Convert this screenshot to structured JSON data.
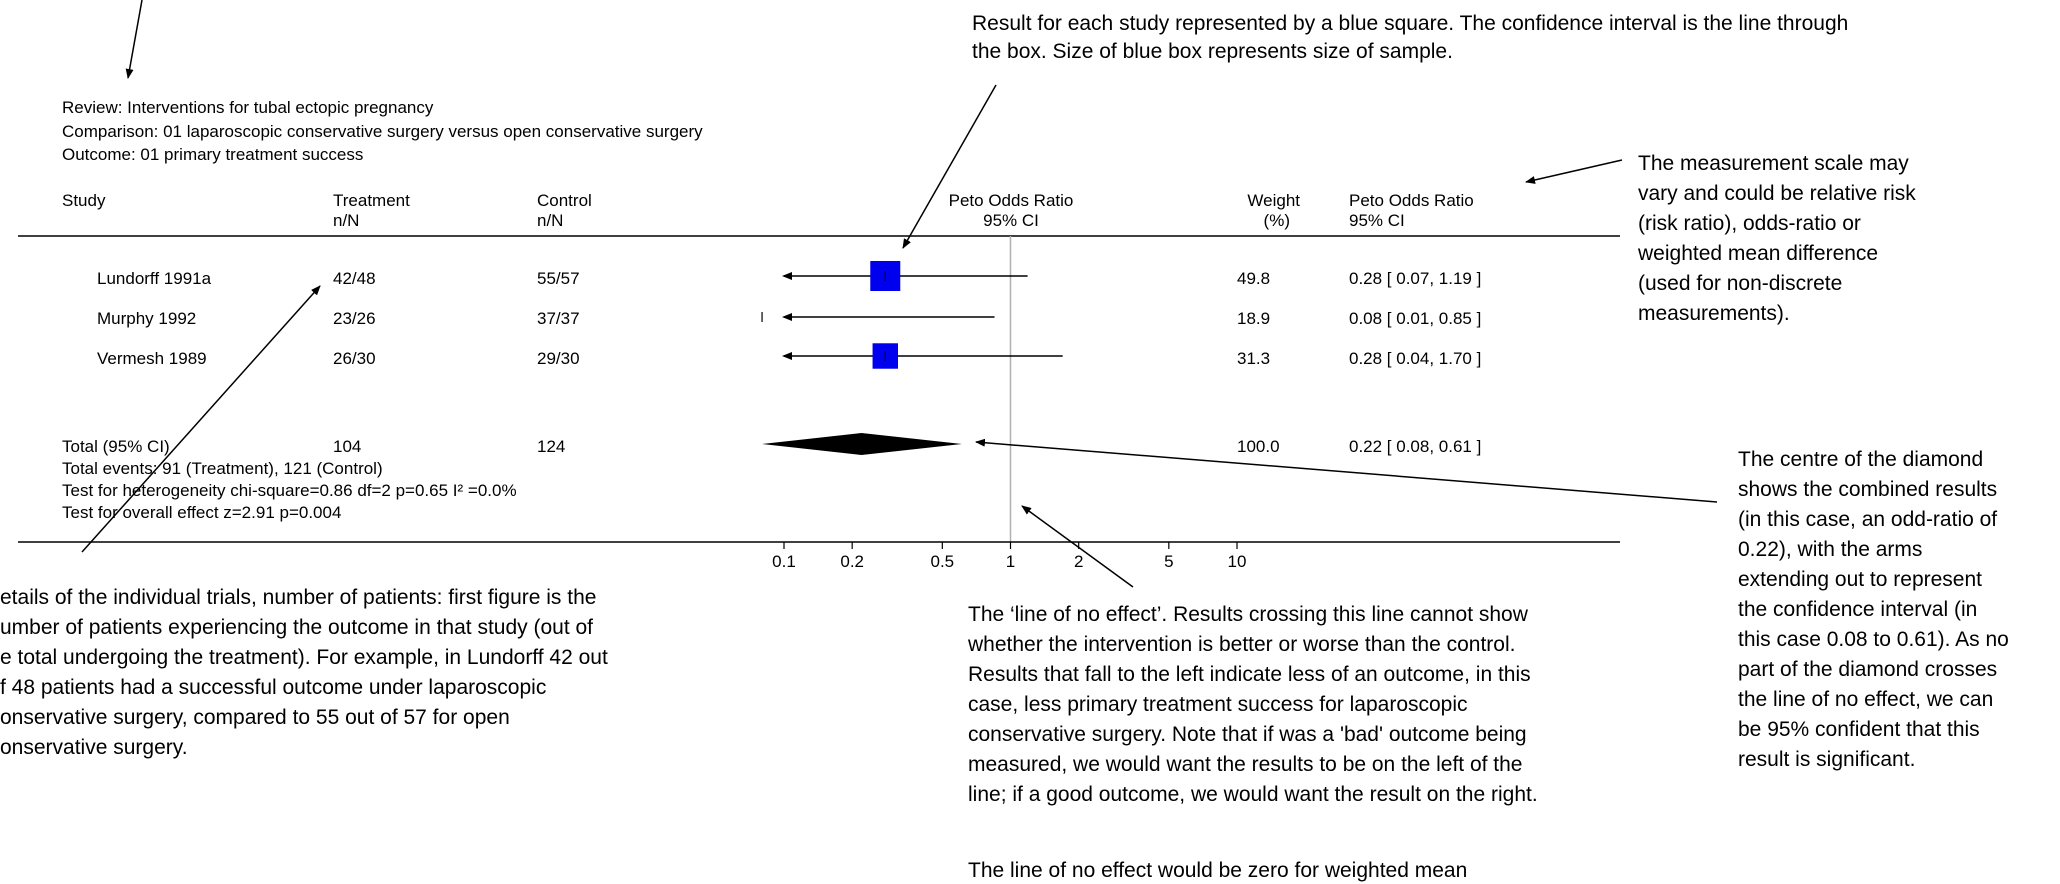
{
  "header": {
    "review": "Review:  Interventions for tubal ectopic pregnancy",
    "comparison": "Comparison:  01 laparoscopic conservative surgery versus open conservative surgery",
    "outcome": "Outcome:  01 primary treatment success"
  },
  "columns": {
    "study": "Study",
    "treatment": "Treatment",
    "treatment_sub": "n/N",
    "control": "Control",
    "control_sub": "n/N",
    "plot": "Peto Odds Ratio",
    "plot_sub": "95% CI",
    "weight": "Weight",
    "weight_sub": "(%)",
    "or": "Peto Odds Ratio",
    "or_sub": "95% CI"
  },
  "chart_data": {
    "type": "forest",
    "xscale": "log",
    "xlim": [
      0.1,
      10
    ],
    "xticks": [
      0.1,
      0.2,
      0.5,
      1,
      2,
      5,
      10
    ],
    "xtick_labels": [
      "0.1",
      "0.2",
      "0.5",
      "1",
      "2",
      "5",
      "10"
    ],
    "line_of_no_effect": 1,
    "colors": {
      "study_marker": "#0000ee",
      "summary_marker": "#000000",
      "no_effect_line": "#b0b0b0"
    },
    "studies": [
      {
        "name": "Lundorff 1991a",
        "treatment": "42/48",
        "control": "55/57",
        "or": 0.28,
        "lo": 0.07,
        "hi": 1.19,
        "weight": 49.8,
        "weight_label": "49.8",
        "ci_label": "0.28 [ 0.07, 1.19 ]",
        "lo_arrow": true
      },
      {
        "name": "Murphy 1992",
        "treatment": "23/26",
        "control": "37/37",
        "or": 0.08,
        "lo": 0.01,
        "hi": 0.85,
        "weight": 18.9,
        "weight_label": "18.9",
        "ci_label": "0.08 [ 0.01, 0.85 ]",
        "lo_arrow": true
      },
      {
        "name": "Vermesh 1989",
        "treatment": "26/30",
        "control": "29/30",
        "or": 0.28,
        "lo": 0.04,
        "hi": 1.7,
        "weight": 31.3,
        "weight_label": "31.3",
        "ci_label": "0.28 [ 0.04, 1.70 ]",
        "lo_arrow": true
      }
    ],
    "total": {
      "label": "Total (95% CI)",
      "treatment": "104",
      "control": "124",
      "or": 0.22,
      "lo": 0.08,
      "hi": 0.61,
      "weight_label": "100.0",
      "ci_label": "0.22 [ 0.08, 0.61 ]",
      "events": "Total events: 91 (Treatment), 121 (Control)",
      "heterogeneity": "Test for heterogeneity chi-square=0.86 df=2 p=0.65 I² =0.0%",
      "overall": "Test for overall effect z=2.91  p=0.004"
    }
  },
  "annotations": {
    "study_result": [
      "Result for each study represented by a blue square. The confidence interval is the line through",
      "the box. Size of blue box represents size of sample."
    ],
    "scale": [
      "The measurement scale may",
      "vary and could be relative risk",
      "(risk ratio), odds-ratio or",
      "weighted mean difference",
      "(used for non-discrete",
      "measurements)."
    ],
    "diamond": [
      "The centre of the diamond",
      "shows the combined results",
      "(in this case, an odd-ratio of",
      "0.22), with the arms",
      "extending out to represent",
      "the confidence interval (in",
      "this case 0.08 to 0.61). As no",
      "part of the diamond crosses",
      "the line of no effect, we can",
      "be 95% confident that this",
      "result is significant."
    ],
    "trials": [
      "etails of the individual trials, number of patients: first figure is the",
      "umber of patients experiencing the outcome in that study (out of",
      "e total undergoing the treatment). For example, in Lundorff 42 out",
      "f 48 patients had a successful outcome under  laparoscopic",
      "onservative surgery, compared to 55 out of 57 for open",
      "onservative surgery."
    ],
    "no_effect": [
      "The ‘line of no effect’. Results crossing this line cannot show",
      "whether the intervention is better or worse than the control.",
      "Results that fall to the left indicate less of an outcome, in this",
      "case, less primary treatment success for laparoscopic",
      "conservative surgery. Note that if was a 'bad' outcome being",
      "measured, we would want the results to be on the left of the",
      "line; if a good outcome, we would want the result on the right.",
      "",
      "The line of no effect would be zero for weighted mean"
    ]
  }
}
